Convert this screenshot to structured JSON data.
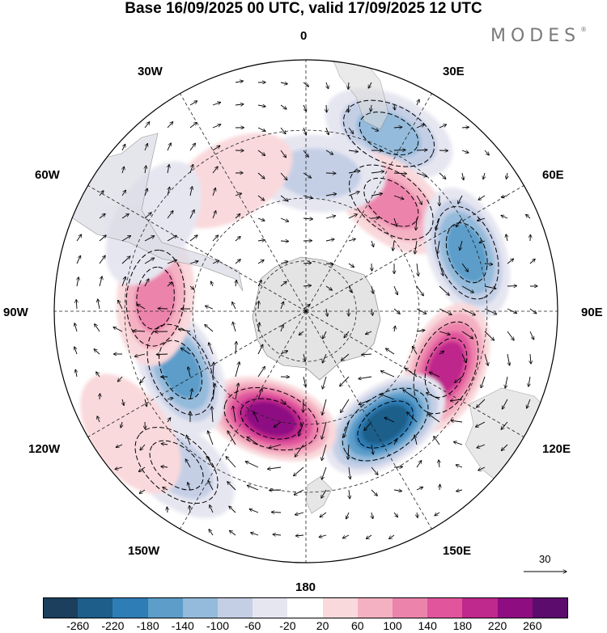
{
  "title": "Base 16/09/2025 00 UTC, valid 17/09/2025 12 UTC",
  "brand": {
    "name": "MODES",
    "mark": "®"
  },
  "longitude_labels": {
    "lon_0": "0",
    "lon_30E": "30E",
    "lon_60E": "60E",
    "lon_90E": "90E",
    "lon_120E": "120E",
    "lon_150E": "150E",
    "lon_180": "180",
    "lon_150W": "150W",
    "lon_120W": "120W",
    "lon_90W": "90W",
    "lon_60W": "60W",
    "lon_30W": "30W"
  },
  "reference_vector": {
    "label": "30"
  },
  "colorbar": {
    "colors": [
      "#1b3f5d",
      "#1d5e8a",
      "#2f7db6",
      "#5c9dca",
      "#94bbdb",
      "#c4cfe6",
      "#e6e6f1",
      "#ffffff",
      "#f9d9dc",
      "#f4b1c2",
      "#ec83ab",
      "#e0559c",
      "#bf288c",
      "#8e0e82",
      "#5b0c6c"
    ],
    "ticks": [
      "-260",
      "-220",
      "-180",
      "-140",
      "-100",
      "-60",
      "-20",
      "20",
      "60",
      "100",
      "140",
      "180",
      "220",
      "260"
    ]
  },
  "chart_data": {
    "type": "polar-stereographic contour map with wind vectors",
    "projection": "South polar stereographic",
    "anomalies": [
      {
        "lon": 25,
        "r": 0.78,
        "value": -120
      },
      {
        "lon": 38,
        "r": 0.55,
        "value": 110
      },
      {
        "lon": 5,
        "r": 0.55,
        "value": -80
      },
      {
        "lon": 70,
        "r": 0.68,
        "value": -170
      },
      {
        "lon": 112,
        "r": 0.6,
        "value": 190
      },
      {
        "lon": 145,
        "r": 0.55,
        "value": -240
      },
      {
        "lon": -162,
        "r": 0.45,
        "value": 230
      },
      {
        "lon": -115,
        "r": 0.55,
        "value": -170
      },
      {
        "lon": -85,
        "r": 0.6,
        "value": 140
      },
      {
        "lon": -140,
        "r": 0.8,
        "value": -100
      },
      {
        "lon": -125,
        "r": 0.85,
        "value": 60
      },
      {
        "lon": -30,
        "r": 0.6,
        "value": 60
      },
      {
        "lon": -60,
        "r": 0.7,
        "value": -60
      }
    ]
  }
}
